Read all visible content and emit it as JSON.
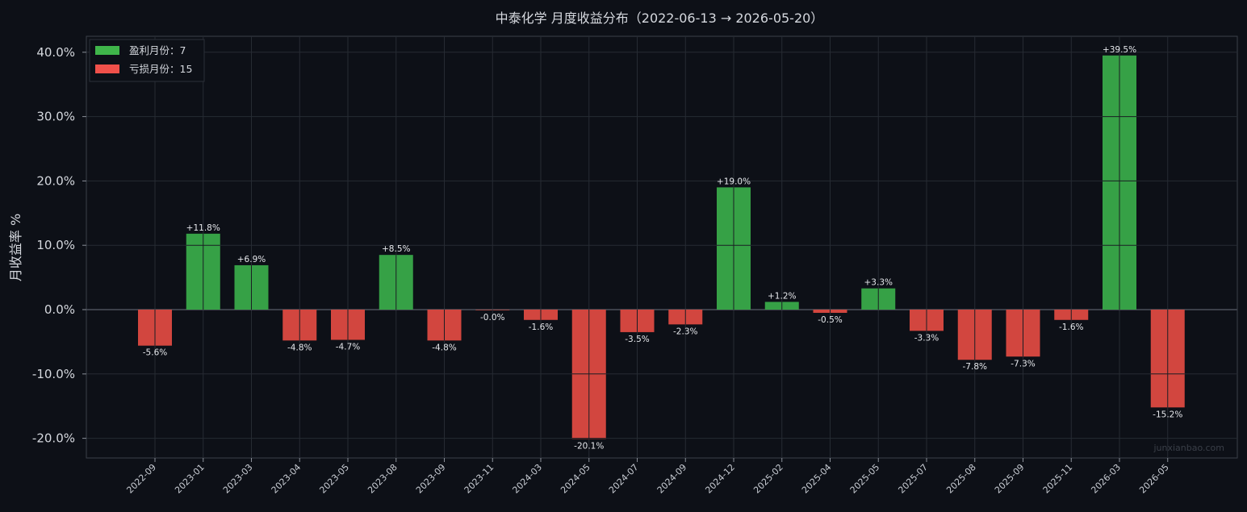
{
  "chart_data": {
    "type": "bar",
    "title": "中泰化学 月度收益分布（2022-06-13 → 2026-05-20）",
    "ylabel": "月收益率 %",
    "xlabel": "",
    "ylim": [
      -23.2,
      42.5
    ],
    "yticks": [
      "-20.0%",
      "-10.0%",
      "0.0%",
      "10.0%",
      "20.0%",
      "30.0%",
      "40.0%"
    ],
    "categories": [
      "2022-09",
      "2023-01",
      "2023-03",
      "2023-04",
      "2023-05",
      "2023-08",
      "2023-09",
      "2023-11",
      "2024-03",
      "2024-05",
      "2024-07",
      "2024-09",
      "2024-12",
      "2025-02",
      "2025-04",
      "2025-05",
      "2025-07",
      "2025-08",
      "2025-09",
      "2025-11",
      "2026-03",
      "2026-05"
    ],
    "values": [
      -5.6,
      11.8,
      6.9,
      -4.8,
      -4.7,
      8.5,
      -4.8,
      -0.0,
      -1.6,
      -20.1,
      -3.5,
      -2.3,
      19.0,
      1.2,
      -0.5,
      3.3,
      -3.3,
      -7.8,
      -7.3,
      -1.6,
      39.5,
      -15.2
    ],
    "value_labels": [
      "-5.6%",
      "+11.8%",
      "+6.9%",
      "-4.8%",
      "-4.7%",
      "+8.5%",
      "-4.8%",
      "-0.0%",
      "-1.6%",
      "-20.1%",
      "-3.5%",
      "-2.3%",
      "+19.0%",
      "+1.2%",
      "-0.5%",
      "+3.3%",
      "-3.3%",
      "-7.8%",
      "-7.3%",
      "-1.6%",
      "+39.5%",
      "-15.2%"
    ],
    "legend": {
      "placement": "top-left",
      "entries": [
        {
          "label": "盈利月份：7",
          "color": "#3fb54a"
        },
        {
          "label": "亏损月份：15",
          "color": "#f0504a"
        }
      ]
    },
    "colors": {
      "positive": "#36a146",
      "negative": "#d2463f",
      "background": "#0d1017",
      "grid": "#262b33",
      "axis": "#3a3f48"
    },
    "grid": true,
    "watermark": "junxianbao.com"
  }
}
